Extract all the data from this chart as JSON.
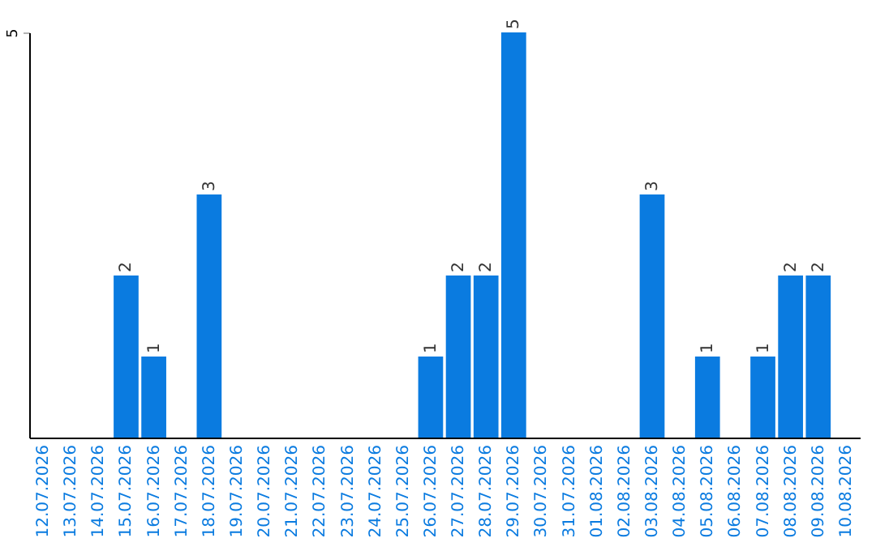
{
  "chart_data": {
    "type": "bar",
    "categories": [
      "12.07.2026",
      "13.07.2026",
      "14.07.2026",
      "15.07.2026",
      "16.07.2026",
      "17.07.2026",
      "18.07.2026",
      "19.07.2026",
      "20.07.2026",
      "21.07.2026",
      "22.07.2026",
      "23.07.2026",
      "24.07.2026",
      "25.07.2026",
      "26.07.2026",
      "27.07.2026",
      "28.07.2026",
      "29.07.2026",
      "30.07.2026",
      "31.07.2026",
      "01.08.2026",
      "02.08.2026",
      "03.08.2026",
      "04.08.2026",
      "05.08.2026",
      "06.08.2026",
      "07.08.2026",
      "08.08.2026",
      "09.08.2026",
      "10.08.2026"
    ],
    "values": [
      0,
      0,
      0,
      2,
      1,
      0,
      3,
      0,
      0,
      0,
      0,
      0,
      0,
      0,
      1,
      2,
      2,
      5,
      0,
      0,
      0,
      0,
      3,
      0,
      1,
      0,
      1,
      2,
      2,
      0
    ],
    "value_labels": [
      null,
      null,
      null,
      "2",
      "1",
      null,
      "3",
      null,
      null,
      null,
      null,
      null,
      null,
      null,
      "1",
      "2",
      "2",
      "5",
      null,
      null,
      null,
      null,
      "3",
      null,
      "1",
      null,
      "1",
      "2",
      "2",
      null
    ],
    "color": "#0a7be0",
    "ylim": [
      0,
      5
    ],
    "yticks": [
      5
    ]
  }
}
